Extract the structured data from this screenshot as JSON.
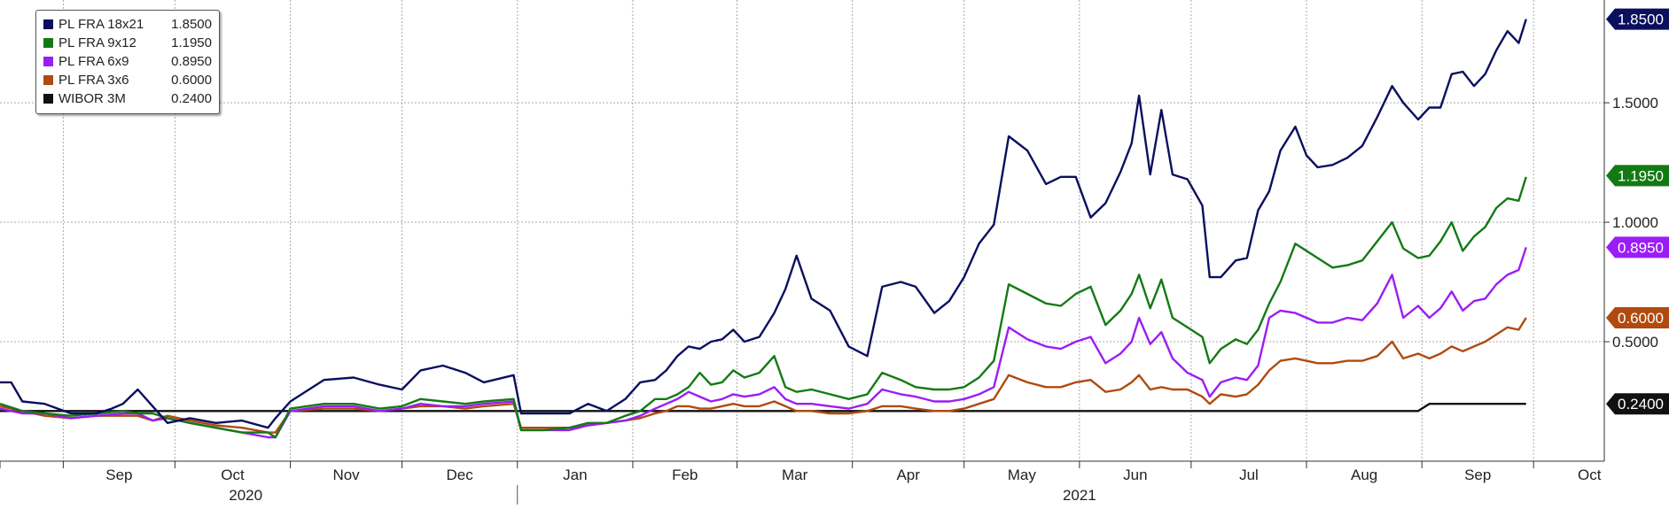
{
  "chart_data": {
    "type": "line",
    "title": "",
    "xlabel": "",
    "ylabel": "",
    "ylim": [
      0.0,
      1.93
    ],
    "y_ticks": [
      0.5,
      1.0,
      1.5
    ],
    "y_tick_labels": [
      "0.5000",
      "1.0000",
      "1.5000"
    ],
    "x_range": [
      "2020-08-15",
      "2021-10-20"
    ],
    "x_ticks": [
      {
        "date": "2020-09-01",
        "label": "Sep"
      },
      {
        "date": "2020-10-01",
        "label": "Oct"
      },
      {
        "date": "2020-11-01",
        "label": "Nov"
      },
      {
        "date": "2020-12-01",
        "label": "Dec"
      },
      {
        "date": "2021-01-01",
        "label": "Jan"
      },
      {
        "date": "2021-02-01",
        "label": "Feb"
      },
      {
        "date": "2021-03-01",
        "label": "Mar"
      },
      {
        "date": "2021-04-01",
        "label": "Apr"
      },
      {
        "date": "2021-05-01",
        "label": "May"
      },
      {
        "date": "2021-06-01",
        "label": "Jun"
      },
      {
        "date": "2021-07-01",
        "label": "Jul"
      },
      {
        "date": "2021-08-01",
        "label": "Aug"
      },
      {
        "date": "2021-09-01",
        "label": "Sep"
      },
      {
        "date": "2021-10-01",
        "label": "Oct"
      }
    ],
    "year_labels": [
      {
        "label": "2020",
        "center": "2020-10-20"
      },
      {
        "label": "2021",
        "center": "2021-06-01"
      }
    ],
    "year_divider": "2021-01-01",
    "grid": true,
    "legend": "top-left",
    "series": [
      {
        "name": "PL FRA 18x21",
        "last": "1.8500",
        "color": "#0a0f5e",
        "x": [
          "2020-08-15",
          "2020-08-18",
          "2020-08-21",
          "2020-08-27",
          "2020-09-03",
          "2020-09-10",
          "2020-09-14",
          "2020-09-17",
          "2020-09-21",
          "2020-09-25",
          "2020-09-29",
          "2020-10-05",
          "2020-10-12",
          "2020-10-19",
          "2020-10-26",
          "2020-10-28",
          "2020-11-01",
          "2020-11-10",
          "2020-11-18",
          "2020-11-25",
          "2020-12-01",
          "2020-12-06",
          "2020-12-12",
          "2020-12-18",
          "2020-12-23",
          "2020-12-31",
          "2021-01-02",
          "2021-01-08",
          "2021-01-15",
          "2021-01-20",
          "2021-01-25",
          "2021-01-30",
          "2021-02-03",
          "2021-02-07",
          "2021-02-10",
          "2021-02-13",
          "2021-02-16",
          "2021-02-19",
          "2021-02-22",
          "2021-02-25",
          "2021-02-28",
          "2021-03-03",
          "2021-03-07",
          "2021-03-11",
          "2021-03-14",
          "2021-03-17",
          "2021-03-21",
          "2021-03-26",
          "2021-03-31",
          "2021-04-05",
          "2021-04-09",
          "2021-04-14",
          "2021-04-18",
          "2021-04-23",
          "2021-04-27",
          "2021-05-01",
          "2021-05-05",
          "2021-05-09",
          "2021-05-13",
          "2021-05-18",
          "2021-05-23",
          "2021-05-27",
          "2021-05-31",
          "2021-06-04",
          "2021-06-08",
          "2021-06-12",
          "2021-06-15",
          "2021-06-17",
          "2021-06-20",
          "2021-06-23",
          "2021-06-26",
          "2021-06-30",
          "2021-07-04",
          "2021-07-06",
          "2021-07-09",
          "2021-07-13",
          "2021-07-16",
          "2021-07-19",
          "2021-07-22",
          "2021-07-25",
          "2021-07-29",
          "2021-08-01",
          "2021-08-04",
          "2021-08-08",
          "2021-08-12",
          "2021-08-16",
          "2021-08-20",
          "2021-08-24",
          "2021-08-27",
          "2021-08-31",
          "2021-09-03",
          "2021-09-06",
          "2021-09-09",
          "2021-09-12",
          "2021-09-15",
          "2021-09-18",
          "2021-09-21",
          "2021-09-24",
          "2021-09-27",
          "2021-09-29"
        ],
        "y": [
          0.33,
          0.33,
          0.25,
          0.24,
          0.2,
          0.2,
          0.22,
          0.24,
          0.3,
          0.23,
          0.16,
          0.18,
          0.16,
          0.17,
          0.14,
          0.18,
          0.25,
          0.34,
          0.35,
          0.32,
          0.3,
          0.38,
          0.4,
          0.37,
          0.33,
          0.36,
          0.2,
          0.2,
          0.2,
          0.24,
          0.21,
          0.26,
          0.33,
          0.34,
          0.38,
          0.44,
          0.48,
          0.47,
          0.5,
          0.51,
          0.55,
          0.5,
          0.52,
          0.62,
          0.72,
          0.86,
          0.68,
          0.63,
          0.48,
          0.44,
          0.73,
          0.75,
          0.73,
          0.62,
          0.67,
          0.77,
          0.91,
          0.99,
          1.36,
          1.3,
          1.16,
          1.19,
          1.19,
          1.02,
          1.08,
          1.21,
          1.33,
          1.53,
          1.2,
          1.47,
          1.2,
          1.18,
          1.07,
          0.77,
          0.77,
          0.84,
          0.85,
          1.05,
          1.13,
          1.3,
          1.4,
          1.28,
          1.23,
          1.24,
          1.27,
          1.32,
          1.44,
          1.57,
          1.5,
          1.43,
          1.48,
          1.48,
          1.62,
          1.63,
          1.57,
          1.62,
          1.72,
          1.8,
          1.75,
          1.85
        ]
      },
      {
        "name": "PL FRA 9x12",
        "last": "1.1950",
        "color": "#137a13",
        "x": [
          "2020-08-15",
          "2020-08-21",
          "2020-08-27",
          "2020-09-03",
          "2020-09-10",
          "2020-09-17",
          "2020-09-21",
          "2020-09-25",
          "2020-09-29",
          "2020-10-05",
          "2020-10-12",
          "2020-10-19",
          "2020-10-26",
          "2020-10-28",
          "2020-11-01",
          "2020-11-10",
          "2020-11-18",
          "2020-11-25",
          "2020-12-01",
          "2020-12-06",
          "2020-12-12",
          "2020-12-18",
          "2020-12-23",
          "2020-12-31",
          "2021-01-02",
          "2021-01-08",
          "2021-01-15",
          "2021-01-20",
          "2021-01-25",
          "2021-01-30",
          "2021-02-03",
          "2021-02-07",
          "2021-02-10",
          "2021-02-13",
          "2021-02-16",
          "2021-02-19",
          "2021-02-22",
          "2021-02-25",
          "2021-02-28",
          "2021-03-03",
          "2021-03-07",
          "2021-03-11",
          "2021-03-14",
          "2021-03-17",
          "2021-03-21",
          "2021-03-26",
          "2021-03-31",
          "2021-04-05",
          "2021-04-09",
          "2021-04-14",
          "2021-04-18",
          "2021-04-23",
          "2021-04-27",
          "2021-05-01",
          "2021-05-05",
          "2021-05-09",
          "2021-05-13",
          "2021-05-18",
          "2021-05-23",
          "2021-05-27",
          "2021-05-31",
          "2021-06-04",
          "2021-06-08",
          "2021-06-12",
          "2021-06-15",
          "2021-06-17",
          "2021-06-20",
          "2021-06-23",
          "2021-06-26",
          "2021-06-30",
          "2021-07-04",
          "2021-07-06",
          "2021-07-09",
          "2021-07-13",
          "2021-07-16",
          "2021-07-19",
          "2021-07-22",
          "2021-07-25",
          "2021-07-29",
          "2021-08-01",
          "2021-08-04",
          "2021-08-08",
          "2021-08-12",
          "2021-08-16",
          "2021-08-20",
          "2021-08-24",
          "2021-08-27",
          "2021-08-31",
          "2021-09-03",
          "2021-09-06",
          "2021-09-09",
          "2021-09-12",
          "2021-09-15",
          "2021-09-18",
          "2021-09-21",
          "2021-09-24",
          "2021-09-27",
          "2021-09-29"
        ],
        "y": [
          0.24,
          0.21,
          0.2,
          0.19,
          0.2,
          0.21,
          0.2,
          0.2,
          0.18,
          0.16,
          0.14,
          0.12,
          0.12,
          0.1,
          0.22,
          0.24,
          0.24,
          0.22,
          0.23,
          0.26,
          0.25,
          0.24,
          0.25,
          0.26,
          0.13,
          0.13,
          0.14,
          0.16,
          0.16,
          0.19,
          0.21,
          0.26,
          0.26,
          0.28,
          0.31,
          0.37,
          0.32,
          0.33,
          0.38,
          0.35,
          0.37,
          0.44,
          0.31,
          0.29,
          0.3,
          0.28,
          0.26,
          0.28,
          0.37,
          0.34,
          0.31,
          0.3,
          0.3,
          0.31,
          0.35,
          0.42,
          0.74,
          0.7,
          0.66,
          0.65,
          0.7,
          0.73,
          0.57,
          0.63,
          0.7,
          0.78,
          0.64,
          0.76,
          0.6,
          0.56,
          0.52,
          0.41,
          0.47,
          0.51,
          0.49,
          0.55,
          0.66,
          0.75,
          0.91,
          0.88,
          0.85,
          0.81,
          0.82,
          0.84,
          0.92,
          1.0,
          0.89,
          0.85,
          0.86,
          0.92,
          1.0,
          0.88,
          0.94,
          0.98,
          1.06,
          1.1,
          1.09,
          1.19
        ]
      },
      {
        "name": "PL FRA 6x9",
        "last": "0.8950",
        "color": "#9b1df5",
        "x": [
          "2020-08-15",
          "2020-08-21",
          "2020-08-27",
          "2020-09-03",
          "2020-09-10",
          "2020-09-17",
          "2020-09-21",
          "2020-09-25",
          "2020-09-29",
          "2020-10-05",
          "2020-10-12",
          "2020-10-19",
          "2020-10-26",
          "2020-10-28",
          "2020-11-01",
          "2020-11-10",
          "2020-11-18",
          "2020-11-25",
          "2020-12-01",
          "2020-12-06",
          "2020-12-12",
          "2020-12-18",
          "2020-12-23",
          "2020-12-31",
          "2021-01-02",
          "2021-01-08",
          "2021-01-15",
          "2021-01-20",
          "2021-01-25",
          "2021-01-30",
          "2021-02-03",
          "2021-02-07",
          "2021-02-10",
          "2021-02-13",
          "2021-02-16",
          "2021-02-19",
          "2021-02-22",
          "2021-02-25",
          "2021-02-28",
          "2021-03-03",
          "2021-03-07",
          "2021-03-11",
          "2021-03-14",
          "2021-03-17",
          "2021-03-21",
          "2021-03-26",
          "2021-03-31",
          "2021-04-05",
          "2021-04-09",
          "2021-04-14",
          "2021-04-18",
          "2021-04-23",
          "2021-04-27",
          "2021-05-01",
          "2021-05-05",
          "2021-05-09",
          "2021-05-13",
          "2021-05-18",
          "2021-05-23",
          "2021-05-27",
          "2021-05-31",
          "2021-06-04",
          "2021-06-08",
          "2021-06-12",
          "2021-06-15",
          "2021-06-17",
          "2021-06-20",
          "2021-06-23",
          "2021-06-26",
          "2021-06-30",
          "2021-07-04",
          "2021-07-06",
          "2021-07-09",
          "2021-07-13",
          "2021-07-16",
          "2021-07-19",
          "2021-07-22",
          "2021-07-25",
          "2021-07-29",
          "2021-08-01",
          "2021-08-04",
          "2021-08-08",
          "2021-08-12",
          "2021-08-16",
          "2021-08-20",
          "2021-08-24",
          "2021-08-27",
          "2021-08-31",
          "2021-09-03",
          "2021-09-06",
          "2021-09-09",
          "2021-09-12",
          "2021-09-15",
          "2021-09-18",
          "2021-09-21",
          "2021-09-24",
          "2021-09-27",
          "2021-09-29"
        ],
        "y": [
          0.22,
          0.2,
          0.2,
          0.18,
          0.19,
          0.2,
          0.2,
          0.17,
          0.18,
          0.16,
          0.14,
          0.12,
          0.1,
          0.1,
          0.21,
          0.23,
          0.23,
          0.21,
          0.22,
          0.24,
          0.23,
          0.23,
          0.24,
          0.25,
          0.13,
          0.13,
          0.13,
          0.15,
          0.16,
          0.17,
          0.19,
          0.22,
          0.24,
          0.26,
          0.29,
          0.27,
          0.25,
          0.26,
          0.28,
          0.27,
          0.28,
          0.31,
          0.26,
          0.24,
          0.24,
          0.23,
          0.22,
          0.24,
          0.3,
          0.28,
          0.27,
          0.25,
          0.25,
          0.26,
          0.28,
          0.31,
          0.56,
          0.51,
          0.48,
          0.47,
          0.5,
          0.52,
          0.41,
          0.45,
          0.5,
          0.6,
          0.49,
          0.54,
          0.43,
          0.37,
          0.34,
          0.27,
          0.33,
          0.35,
          0.34,
          0.4,
          0.6,
          0.63,
          0.62,
          0.6,
          0.58,
          0.58,
          0.6,
          0.59,
          0.66,
          0.78,
          0.6,
          0.65,
          0.6,
          0.64,
          0.71,
          0.63,
          0.67,
          0.68,
          0.74,
          0.78,
          0.8,
          0.895
        ]
      },
      {
        "name": "PL FRA 3x6",
        "last": "0.6000",
        "color": "#b04a0f",
        "x": [
          "2020-08-15",
          "2020-08-21",
          "2020-08-27",
          "2020-09-03",
          "2020-09-10",
          "2020-09-17",
          "2020-09-21",
          "2020-09-25",
          "2020-09-29",
          "2020-10-05",
          "2020-10-12",
          "2020-10-19",
          "2020-10-26",
          "2020-10-28",
          "2020-11-01",
          "2020-11-10",
          "2020-11-18",
          "2020-11-25",
          "2020-12-01",
          "2020-12-06",
          "2020-12-12",
          "2020-12-18",
          "2020-12-23",
          "2020-12-31",
          "2021-01-02",
          "2021-01-08",
          "2021-01-15",
          "2021-01-20",
          "2021-01-25",
          "2021-01-30",
          "2021-02-03",
          "2021-02-07",
          "2021-02-10",
          "2021-02-13",
          "2021-02-16",
          "2021-02-19",
          "2021-02-22",
          "2021-02-25",
          "2021-02-28",
          "2021-03-03",
          "2021-03-07",
          "2021-03-11",
          "2021-03-14",
          "2021-03-17",
          "2021-03-21",
          "2021-03-26",
          "2021-03-31",
          "2021-04-05",
          "2021-04-09",
          "2021-04-14",
          "2021-04-18",
          "2021-04-23",
          "2021-04-27",
          "2021-05-01",
          "2021-05-05",
          "2021-05-09",
          "2021-05-13",
          "2021-05-18",
          "2021-05-23",
          "2021-05-27",
          "2021-05-31",
          "2021-06-04",
          "2021-06-08",
          "2021-06-12",
          "2021-06-15",
          "2021-06-17",
          "2021-06-20",
          "2021-06-23",
          "2021-06-26",
          "2021-06-30",
          "2021-07-04",
          "2021-07-06",
          "2021-07-09",
          "2021-07-13",
          "2021-07-16",
          "2021-07-19",
          "2021-07-22",
          "2021-07-25",
          "2021-07-29",
          "2021-08-01",
          "2021-08-04",
          "2021-08-08",
          "2021-08-12",
          "2021-08-16",
          "2021-08-20",
          "2021-08-24",
          "2021-08-27",
          "2021-08-31",
          "2021-09-03",
          "2021-09-06",
          "2021-09-09",
          "2021-09-12",
          "2021-09-15",
          "2021-09-18",
          "2021-09-21",
          "2021-09-24",
          "2021-09-27",
          "2021-09-29"
        ],
        "y": [
          0.23,
          0.21,
          0.19,
          0.18,
          0.19,
          0.19,
          0.19,
          0.17,
          0.19,
          0.17,
          0.15,
          0.14,
          0.12,
          0.12,
          0.21,
          0.22,
          0.22,
          0.21,
          0.22,
          0.23,
          0.23,
          0.22,
          0.23,
          0.24,
          0.14,
          0.14,
          0.14,
          0.15,
          0.16,
          0.17,
          0.18,
          0.2,
          0.21,
          0.23,
          0.23,
          0.22,
          0.22,
          0.23,
          0.24,
          0.23,
          0.23,
          0.25,
          0.23,
          0.21,
          0.21,
          0.2,
          0.2,
          0.21,
          0.23,
          0.23,
          0.22,
          0.21,
          0.21,
          0.22,
          0.24,
          0.26,
          0.36,
          0.33,
          0.31,
          0.31,
          0.33,
          0.34,
          0.29,
          0.3,
          0.33,
          0.36,
          0.3,
          0.31,
          0.3,
          0.3,
          0.27,
          0.24,
          0.28,
          0.27,
          0.28,
          0.32,
          0.38,
          0.42,
          0.43,
          0.42,
          0.41,
          0.41,
          0.42,
          0.42,
          0.44,
          0.5,
          0.43,
          0.45,
          0.43,
          0.45,
          0.48,
          0.46,
          0.48,
          0.5,
          0.53,
          0.56,
          0.55,
          0.6
        ]
      },
      {
        "name": "WIBOR 3M",
        "last": "0.2400",
        "color": "#111111",
        "x": [
          "2020-08-15",
          "2021-08-31",
          "2021-09-03",
          "2021-09-29"
        ],
        "y": [
          0.21,
          0.21,
          0.24,
          0.24
        ]
      }
    ]
  }
}
